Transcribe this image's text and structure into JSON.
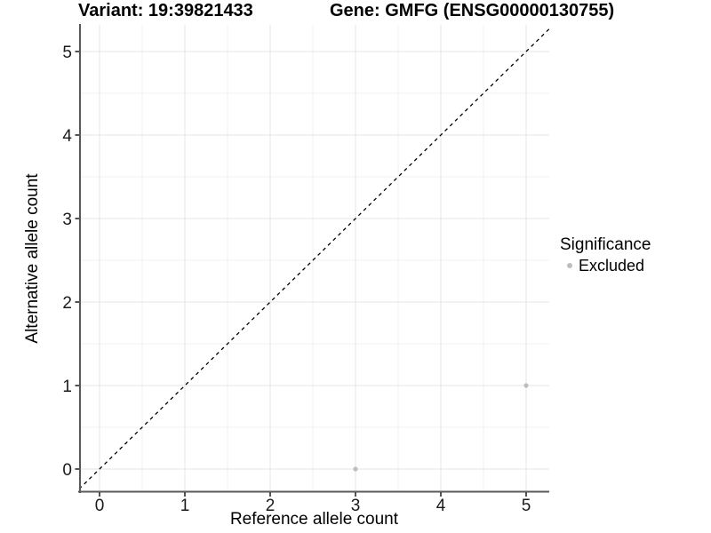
{
  "titles": {
    "variant": "Variant: 19:39821433",
    "gene": "Gene: GMFG (ENSG00000130755)"
  },
  "legend": {
    "title": "Significance",
    "items": [
      {
        "label": "Excluded",
        "color": "#bebebe"
      }
    ]
  },
  "chart_data": {
    "type": "scatter",
    "title_left": "Variant: 19:39821433",
    "title_right": "Gene: GMFG (ENSG00000130755)",
    "xlabel": "Reference allele count",
    "ylabel": "Alternative allele count",
    "xlim": [
      0,
      5
    ],
    "ylim": [
      0,
      5
    ],
    "xticks": [
      "0",
      "1",
      "2",
      "3",
      "4",
      "5"
    ],
    "yticks": [
      "0",
      "1",
      "2",
      "3",
      "4",
      "5"
    ],
    "grid": "major and minor gridlines on white background",
    "legend_position": "right",
    "reference_line": {
      "type": "identity y=x",
      "style": "dashed",
      "color": "#000000"
    },
    "series": [
      {
        "name": "Excluded",
        "color": "#bebebe",
        "points": [
          {
            "x": 3,
            "y": 0
          },
          {
            "x": 5,
            "y": 1
          }
        ]
      }
    ],
    "colors": {
      "background": "#ffffff",
      "grid_major": "#e4e4e4",
      "grid_minor": "#f1f1f1",
      "axis_line": "#595959",
      "tick_mark": "#404040",
      "tick_label": "#1a1a1a",
      "point": "#bebebe"
    }
  }
}
